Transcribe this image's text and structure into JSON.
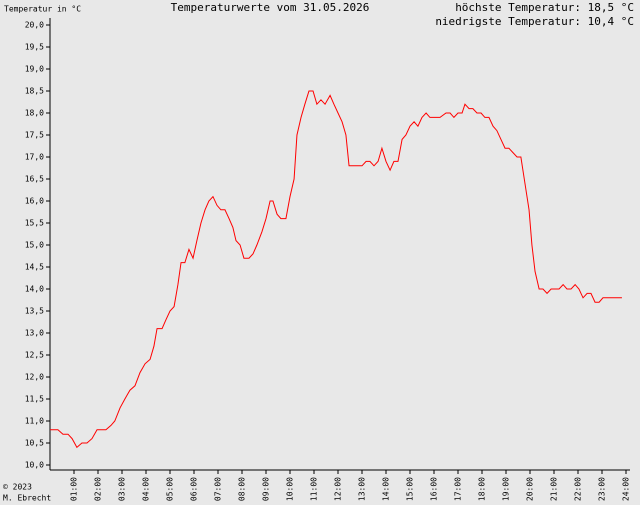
{
  "chart_data": {
    "type": "line",
    "title": "Temperaturwerte vom 31.05.2026",
    "y_label": "Temperatur in °C",
    "annotations": [
      "höchste Temperatur: 18,5 °C",
      "niedrigste Temperatur: 10,4 °C"
    ],
    "footer": [
      "© 2023",
      "M. Ebrecht"
    ],
    "xlim": [
      0,
      24
    ],
    "ylim": [
      10,
      20
    ],
    "xticks": [
      {
        "value": 1,
        "label": "01:00"
      },
      {
        "value": 2,
        "label": "02:00"
      },
      {
        "value": 3,
        "label": "03:00"
      },
      {
        "value": 4,
        "label": "04:00"
      },
      {
        "value": 5,
        "label": "05:00"
      },
      {
        "value": 6,
        "label": "06:00"
      },
      {
        "value": 7,
        "label": "07:00"
      },
      {
        "value": 8,
        "label": "08:00"
      },
      {
        "value": 9,
        "label": "09:00"
      },
      {
        "value": 10,
        "label": "10:00"
      },
      {
        "value": 11,
        "label": "11:00"
      },
      {
        "value": 12,
        "label": "12:00"
      },
      {
        "value": 13,
        "label": "13:00"
      },
      {
        "value": 14,
        "label": "14:00"
      },
      {
        "value": 15,
        "label": "15:00"
      },
      {
        "value": 16,
        "label": "16:00"
      },
      {
        "value": 17,
        "label": "17:00"
      },
      {
        "value": 18,
        "label": "18:00"
      },
      {
        "value": 19,
        "label": "19:00"
      },
      {
        "value": 20,
        "label": "20:00"
      },
      {
        "value": 21,
        "label": "21:00"
      },
      {
        "value": 22,
        "label": "22:00"
      },
      {
        "value": 23,
        "label": "23:00"
      },
      {
        "value": 24,
        "label": "24:00"
      }
    ],
    "yticks": [
      {
        "value": 10,
        "label": "10,0"
      },
      {
        "value": 10.5,
        "label": "10,5"
      },
      {
        "value": 11,
        "label": "11,0"
      },
      {
        "value": 11.5,
        "label": "11,5"
      },
      {
        "value": 12,
        "label": "12,0"
      },
      {
        "value": 12.5,
        "label": "12,5"
      },
      {
        "value": 13,
        "label": "13,0"
      },
      {
        "value": 13.5,
        "label": "13,5"
      },
      {
        "value": 14,
        "label": "14,0"
      },
      {
        "value": 14.5,
        "label": "14,5"
      },
      {
        "value": 15,
        "label": "15,0"
      },
      {
        "value": 15.5,
        "label": "15,5"
      },
      {
        "value": 16,
        "label": "16,0"
      },
      {
        "value": 16.5,
        "label": "16,5"
      },
      {
        "value": 17,
        "label": "17,0"
      },
      {
        "value": 17.5,
        "label": "17,5"
      },
      {
        "value": 18,
        "label": "18,0"
      },
      {
        "value": 18.5,
        "label": "18,5"
      },
      {
        "value": 19,
        "label": "19,0"
      },
      {
        "value": 19.5,
        "label": "19,5"
      },
      {
        "value": 20,
        "label": "20,0"
      }
    ],
    "series": [
      {
        "color": "#ff0000",
        "x": [
          0,
          0.33,
          0.54,
          0.75,
          0.92,
          1.12,
          1.33,
          1.54,
          1.75,
          1.96,
          2.33,
          2.54,
          2.7,
          2.92,
          3.12,
          3.33,
          3.54,
          3.75,
          3.96,
          4.17,
          4.33,
          4.46,
          4.67,
          4.83,
          5.0,
          5.17,
          5.33,
          5.46,
          5.62,
          5.79,
          5.96,
          6.12,
          6.29,
          6.46,
          6.62,
          6.79,
          6.96,
          7.12,
          7.29,
          7.46,
          7.62,
          7.75,
          7.92,
          8.08,
          8.29,
          8.46,
          8.62,
          8.83,
          9.0,
          9.17,
          9.29,
          9.46,
          9.62,
          9.83,
          10.0,
          10.17,
          10.29,
          10.46,
          10.62,
          10.79,
          10.96,
          11.12,
          11.29,
          11.46,
          11.67,
          11.83,
          12.0,
          12.17,
          12.33,
          12.46,
          12.67,
          13.0,
          13.17,
          13.33,
          13.5,
          13.67,
          13.83,
          14.0,
          14.17,
          14.33,
          14.5,
          14.67,
          14.83,
          15.0,
          15.17,
          15.33,
          15.5,
          15.67,
          15.83,
          16.25,
          16.5,
          16.67,
          16.83,
          17.0,
          17.17,
          17.29,
          17.46,
          17.62,
          17.79,
          17.96,
          18.12,
          18.29,
          18.46,
          18.62,
          18.79,
          18.96,
          19.12,
          19.29,
          19.46,
          19.62,
          19.79,
          19.96,
          20.08,
          20.21,
          20.38,
          20.54,
          20.71,
          20.88,
          21.21,
          21.38,
          21.54,
          21.71,
          21.88,
          22.04,
          22.21,
          22.38,
          22.54,
          22.71,
          22.88,
          23.04,
          23.83
        ],
        "values": [
          10.8,
          10.8,
          10.7,
          10.7,
          10.6,
          10.4,
          10.5,
          10.5,
          10.6,
          10.8,
          10.8,
          10.9,
          11.0,
          11.3,
          11.5,
          11.7,
          11.8,
          12.1,
          12.3,
          12.4,
          12.7,
          13.1,
          13.1,
          13.3,
          13.5,
          13.6,
          14.1,
          14.6,
          14.6,
          14.9,
          14.7,
          15.1,
          15.5,
          15.8,
          16.0,
          16.1,
          15.9,
          15.8,
          15.8,
          15.6,
          15.4,
          15.1,
          15.0,
          14.7,
          14.7,
          14.8,
          15.0,
          15.3,
          15.6,
          16.0,
          16.0,
          15.7,
          15.6,
          15.6,
          16.1,
          16.5,
          17.5,
          17.9,
          18.2,
          18.5,
          18.5,
          18.2,
          18.3,
          18.2,
          18.4,
          18.2,
          18.0,
          17.8,
          17.5,
          16.8,
          16.8,
          16.8,
          16.9,
          16.9,
          16.8,
          16.9,
          17.2,
          16.9,
          16.7,
          16.9,
          16.9,
          17.4,
          17.5,
          17.7,
          17.8,
          17.7,
          17.9,
          18.0,
          17.9,
          17.9,
          18.0,
          18.0,
          17.9,
          18.0,
          18.0,
          18.2,
          18.1,
          18.1,
          18.0,
          18.0,
          17.9,
          17.9,
          17.7,
          17.6,
          17.4,
          17.2,
          17.2,
          17.1,
          17.0,
          17.0,
          16.4,
          15.8,
          15.0,
          14.4,
          14.0,
          14.0,
          13.9,
          14.0,
          14.0,
          14.1,
          14.0,
          14.0,
          14.1,
          14.0,
          13.8,
          13.9,
          13.9,
          13.7,
          13.7,
          13.8,
          13.8
        ]
      }
    ]
  }
}
